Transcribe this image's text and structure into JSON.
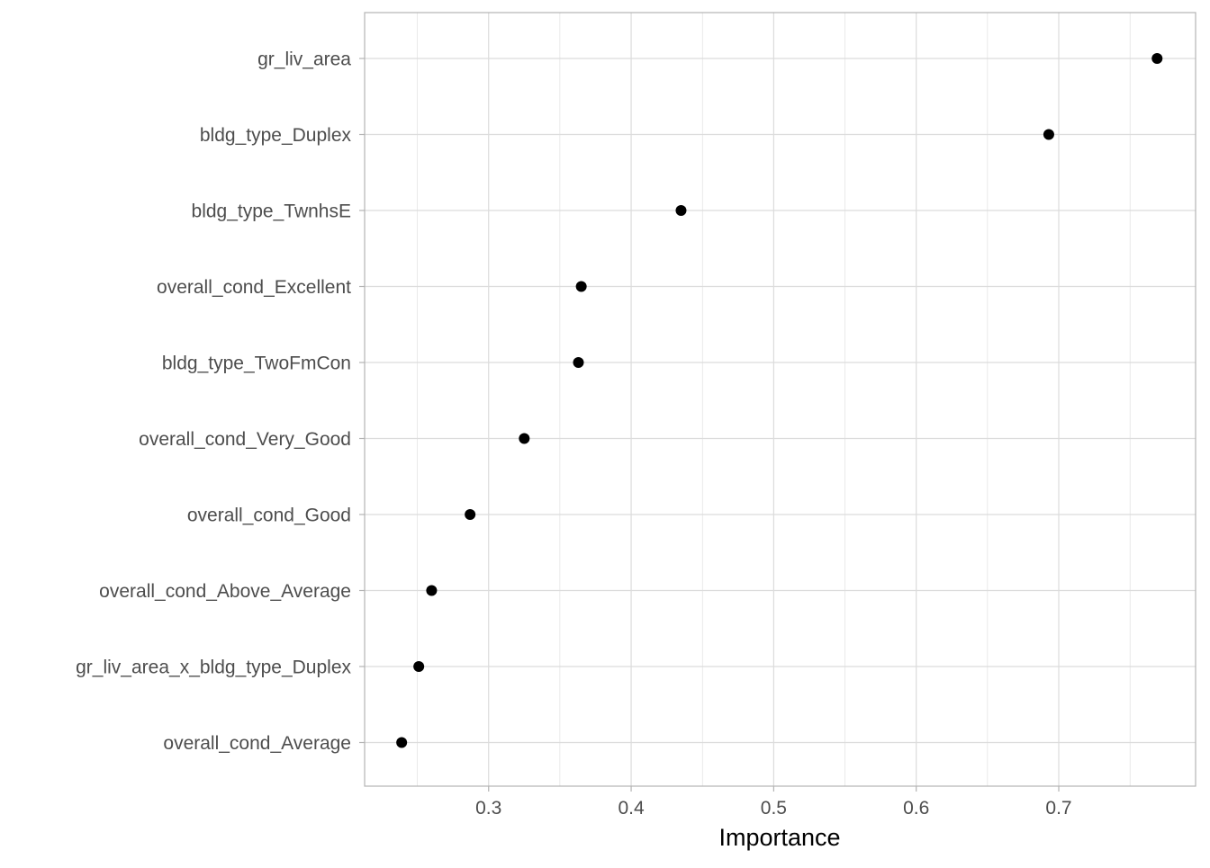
{
  "chart_data": {
    "type": "scatter",
    "title": "",
    "xlabel": "Importance",
    "ylabel": "",
    "categories": [
      "gr_liv_area",
      "bldg_type_Duplex",
      "bldg_type_TwnhsE",
      "overall_cond_Excellent",
      "bldg_type_TwoFmCon",
      "overall_cond_Very_Good",
      "overall_cond_Good",
      "overall_cond_Above_Average",
      "gr_liv_area_x_bldg_type_Duplex",
      "overall_cond_Average"
    ],
    "values": [
      0.769,
      0.693,
      0.435,
      0.365,
      0.363,
      0.325,
      0.287,
      0.26,
      0.251,
      0.239
    ],
    "x_ticks": [
      "0.3",
      "0.4",
      "0.5",
      "0.6",
      "0.7"
    ],
    "xlim": [
      0.213,
      0.796
    ],
    "grid": true,
    "colors": {
      "point": "#000000",
      "grid": "#dcdcdc",
      "border": "#b3b3b3",
      "tick_text": "#4d4d4d"
    }
  }
}
